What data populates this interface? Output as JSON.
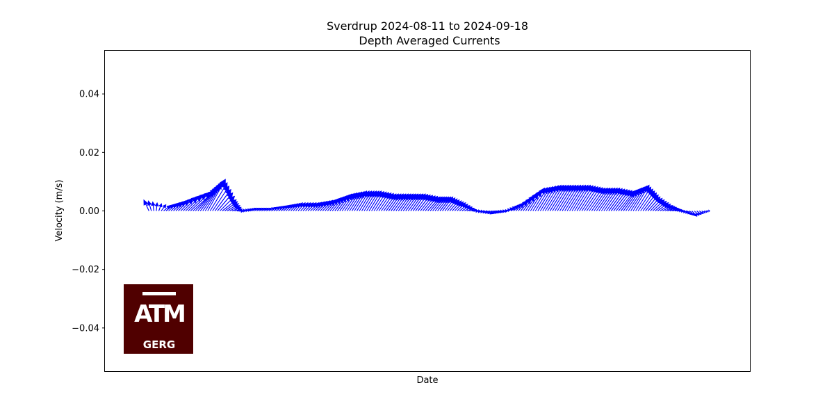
{
  "chart_data": {
    "type": "quiver",
    "title": "Sverdrup 2024-08-11 to 2024-09-18",
    "subtitle": "Depth Averaged Currents",
    "xlabel": "Date",
    "ylabel": "Velocity (m/s)",
    "ylim": [
      -0.055,
      0.055
    ],
    "yticks": [
      -0.04,
      -0.02,
      0.0,
      0.02,
      0.04
    ],
    "ytick_labels": [
      "−0.04",
      "−0.02",
      "0.00",
      "0.02",
      "0.04"
    ],
    "xlim": [
      "2024-08-08",
      "2024-09-21"
    ],
    "grid": false,
    "legend": "none",
    "arrow_color": "#0000ff",
    "profile": {
      "date": [
        "2024-08-11",
        "2024-08-12",
        "2024-08-13",
        "2024-08-14",
        "2024-08-15",
        "2024-08-16",
        "2024-08-17",
        "2024-08-18",
        "2024-08-19",
        "2024-08-20",
        "2024-08-21",
        "2024-08-22",
        "2024-08-23",
        "2024-08-24",
        "2024-08-25",
        "2024-08-26",
        "2024-08-27",
        "2024-08-28",
        "2024-08-29",
        "2024-08-30",
        "2024-08-31",
        "2024-09-01",
        "2024-09-02",
        "2024-09-03",
        "2024-09-04",
        "2024-09-05",
        "2024-09-06",
        "2024-09-07",
        "2024-09-08",
        "2024-09-09",
        "2024-09-10",
        "2024-09-11",
        "2024-09-12",
        "2024-09-13",
        "2024-09-14",
        "2024-09-15",
        "2024-09-16",
        "2024-09-17",
        "2024-09-18"
      ],
      "v": [
        0.004,
        0.002,
        0.004,
        0.007,
        0.011,
        0.004,
        0.0,
        0.001,
        0.001,
        0.002,
        0.003,
        0.003,
        0.004,
        0.006,
        0.007,
        0.007,
        0.006,
        0.006,
        0.006,
        0.005,
        0.005,
        0.003,
        0.0,
        -0.001,
        0.0,
        0.003,
        0.008,
        0.009,
        0.009,
        0.009,
        0.008,
        0.008,
        0.007,
        0.009,
        0.005,
        0.002,
        0.0,
        -0.002,
        0.0
      ],
      "u": [
        -0.003,
        0.004,
        0.006,
        0.012,
        0.01,
        0.008,
        0.004,
        0.003,
        0.003,
        0.004,
        0.004,
        0.005,
        0.006,
        0.007,
        0.007,
        0.007,
        0.007,
        0.007,
        0.007,
        0.007,
        0.006,
        0.005,
        0.004,
        0.004,
        0.004,
        0.005,
        0.008,
        0.009,
        0.009,
        0.009,
        0.009,
        0.009,
        0.009,
        0.009,
        0.007,
        0.006,
        0.004,
        0.003,
        0.002
      ]
    }
  },
  "logo": {
    "letters": "ATM",
    "caption": "GERG",
    "background": "#500000"
  }
}
